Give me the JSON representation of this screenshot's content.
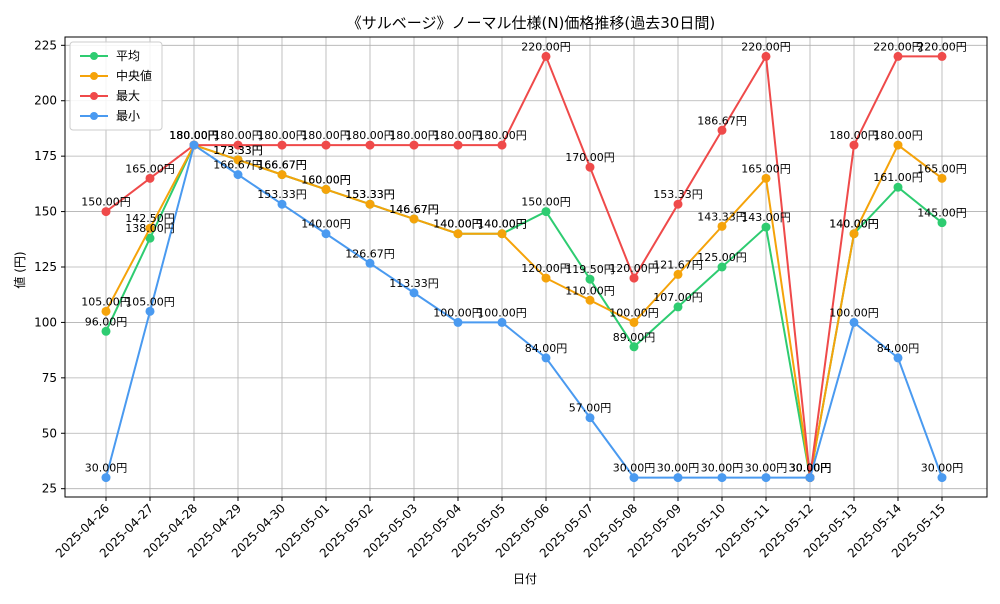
{
  "chart_data": {
    "type": "line",
    "title": "《サルベージ》ノーマル仕様(N)価格推移(過去30日間)",
    "xlabel": "日付",
    "ylabel": "値 (円)",
    "categories": [
      "2025-04-26",
      "2025-04-27",
      "2025-04-28",
      "2025-04-29",
      "2025-04-30",
      "2025-05-01",
      "2025-05-02",
      "2025-05-03",
      "2025-05-04",
      "2025-05-05",
      "2025-05-06",
      "2025-05-07",
      "2025-05-08",
      "2025-05-09",
      "2025-05-10",
      "2025-05-11",
      "2025-05-12",
      "2025-05-13",
      "2025-05-14",
      "2025-05-15"
    ],
    "ylim": [
      21.25,
      228.75
    ],
    "yticks": [
      25,
      50,
      75,
      100,
      125,
      150,
      175,
      200,
      225
    ],
    "grid": true,
    "legend_position": "top-left",
    "value_suffix": "円",
    "series": [
      {
        "name": "平均",
        "color": "#2ecc71",
        "values": [
          96.0,
          138.0,
          180.0,
          173.33,
          166.67,
          160.0,
          153.33,
          146.67,
          140.0,
          140.0,
          150.0,
          119.5,
          89.0,
          107.0,
          125.0,
          143.0,
          30.0,
          140.0,
          161.0,
          145.0
        ]
      },
      {
        "name": "中央値",
        "color": "#f5a30a",
        "values": [
          105.0,
          142.5,
          180.0,
          173.33,
          166.67,
          160.0,
          153.33,
          146.67,
          140.0,
          140.0,
          120.0,
          110.0,
          100.0,
          121.67,
          143.33,
          165.0,
          30.0,
          140.0,
          180.0,
          165.0
        ]
      },
      {
        "name": "最大",
        "color": "#ef4a4a",
        "values": [
          150.0,
          165.0,
          180.0,
          180.0,
          180.0,
          180.0,
          180.0,
          180.0,
          180.0,
          180.0,
          220.0,
          170.0,
          120.0,
          153.33,
          186.67,
          220.0,
          30.0,
          180.0,
          220.0,
          220.0
        ]
      },
      {
        "name": "最小",
        "color": "#4a9af0",
        "values": [
          30.0,
          105.0,
          180.0,
          166.67,
          153.33,
          140.0,
          126.67,
          113.33,
          100.0,
          100.0,
          84.0,
          57.0,
          30.0,
          30.0,
          30.0,
          30.0,
          30.0,
          100.0,
          84.0,
          30.0
        ]
      }
    ]
  }
}
